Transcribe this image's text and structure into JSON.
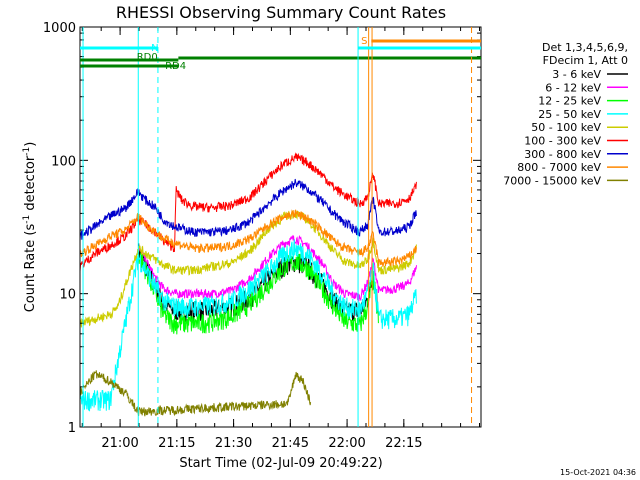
{
  "chart_data": {
    "type": "line",
    "title": "RHESSI Observing Summary Count Rates",
    "xlabel": "Start Time (02-Jul-09 20:49:22)",
    "ylabel_main": "Count Rate (s",
    "ylabel_sup1": "-1",
    "ylabel_mid": " detector",
    "ylabel_sup2": "-1",
    "ylabel_end": ")",
    "y_scale": "log",
    "ylim": [
      1,
      1000
    ],
    "xlim_minutes": [
      0,
      106
    ],
    "x_ticks": [
      {
        "m": 10.6,
        "label": "21:00"
      },
      {
        "m": 25.6,
        "label": "21:15"
      },
      {
        "m": 40.6,
        "label": "21:30"
      },
      {
        "m": 55.6,
        "label": "21:45"
      },
      {
        "m": 70.6,
        "label": "22:00"
      },
      {
        "m": 85.6,
        "label": "22:15"
      }
    ],
    "y_ticks": [
      {
        "v": 1,
        "label": "1"
      },
      {
        "v": 10,
        "label": "10"
      },
      {
        "v": 100,
        "label": "100"
      },
      {
        "v": 1000,
        "label": "1000"
      }
    ],
    "legend_header": [
      "Det 1,3,4,5,6,9,",
      "FDecim 1, Att 0"
    ],
    "legend_position": "right",
    "series": [
      {
        "name": "3 - 6 keV",
        "color": "#000000",
        "points": [
          [
            15.4,
            21
          ],
          [
            17.5,
            16
          ],
          [
            20,
            11.5
          ],
          [
            22,
            8.5
          ],
          [
            25,
            7.5
          ],
          [
            30,
            7.5
          ],
          [
            35,
            7.6
          ],
          [
            40,
            8
          ],
          [
            45,
            9.5
          ],
          [
            50,
            13
          ],
          [
            54,
            16.5
          ],
          [
            57,
            17.5
          ],
          [
            60,
            16
          ],
          [
            64,
            12
          ],
          [
            67,
            9
          ],
          [
            70,
            7.5
          ],
          [
            74,
            7.5
          ],
          [
            76,
            9
          ],
          [
            77.5,
            14
          ],
          [
            79,
            7.5
          ]
        ]
      },
      {
        "name": "6 - 12 keV",
        "color": "#ff00ff",
        "points": [
          [
            15.4,
            22
          ],
          [
            17.5,
            17.5
          ],
          [
            20,
            13
          ],
          [
            22,
            11
          ],
          [
            25,
            10
          ],
          [
            30,
            10
          ],
          [
            35,
            10
          ],
          [
            40,
            10.5
          ],
          [
            45,
            13
          ],
          [
            50,
            19
          ],
          [
            54,
            24
          ],
          [
            57,
            26
          ],
          [
            60,
            23
          ],
          [
            64,
            17
          ],
          [
            67,
            12
          ],
          [
            70,
            10
          ],
          [
            74,
            9.5
          ],
          [
            76,
            12
          ],
          [
            77.5,
            18
          ],
          [
            79,
            10.5
          ],
          [
            84,
            11
          ],
          [
            87,
            12
          ],
          [
            89,
            16
          ]
        ]
      },
      {
        "name": "12 - 25 keV",
        "color": "#00ff00",
        "points": [
          [
            15.4,
            20
          ],
          [
            17.5,
            15
          ],
          [
            20,
            10
          ],
          [
            22,
            7
          ],
          [
            25,
            6
          ],
          [
            30,
            6
          ],
          [
            35,
            6.2
          ],
          [
            40,
            6.8
          ],
          [
            45,
            8.5
          ],
          [
            50,
            12
          ],
          [
            54,
            16
          ],
          [
            57,
            17.5
          ],
          [
            60,
            16
          ],
          [
            64,
            11
          ],
          [
            67,
            8
          ],
          [
            70,
            6.2
          ],
          [
            74,
            5.8
          ],
          [
            76,
            8
          ],
          [
            77.5,
            13
          ],
          [
            79,
            6
          ]
        ]
      },
      {
        "name": "25 - 50 keV",
        "color": "#00ffff",
        "points": [
          [
            0,
            1.6
          ],
          [
            8,
            1.6
          ],
          [
            15.4,
            19
          ],
          [
            17.5,
            15
          ],
          [
            20,
            11
          ],
          [
            22,
            9
          ],
          [
            25,
            8
          ],
          [
            30,
            8
          ],
          [
            35,
            8.2
          ],
          [
            40,
            8.8
          ],
          [
            45,
            11
          ],
          [
            50,
            15
          ],
          [
            54,
            20
          ],
          [
            57,
            22
          ],
          [
            60,
            20
          ],
          [
            64,
            14
          ],
          [
            67,
            10
          ],
          [
            70,
            8
          ],
          [
            74,
            7.5
          ],
          [
            76,
            10
          ],
          [
            77.5,
            15
          ],
          [
            79,
            6.5
          ],
          [
            84,
            6.5
          ],
          [
            87,
            7
          ],
          [
            89,
            10
          ]
        ]
      },
      {
        "name": "50 - 100 keV",
        "color": "#cccc00",
        "points": [
          [
            0,
            6
          ],
          [
            8,
            7
          ],
          [
            10,
            8
          ],
          [
            15.4,
            22
          ],
          [
            17.5,
            20
          ],
          [
            20,
            18
          ],
          [
            22,
            16.5
          ],
          [
            25,
            15
          ],
          [
            30,
            15
          ],
          [
            35,
            16
          ],
          [
            40,
            17
          ],
          [
            45,
            21
          ],
          [
            50,
            31
          ],
          [
            54,
            38
          ],
          [
            57,
            40
          ],
          [
            60,
            36
          ],
          [
            64,
            27
          ],
          [
            67,
            21
          ],
          [
            70,
            17.5
          ],
          [
            74,
            16
          ],
          [
            76,
            18
          ],
          [
            77.5,
            25
          ],
          [
            79,
            15
          ],
          [
            84,
            15.5
          ],
          [
            87,
            17
          ],
          [
            89,
            22
          ]
        ]
      },
      {
        "name": "100 - 300 keV",
        "color": "#ff0000",
        "points": [
          [
            0,
            16
          ],
          [
            4,
            20
          ],
          [
            8,
            23
          ],
          [
            12,
            27
          ],
          [
            15.4,
            36
          ],
          [
            17.5,
            33
          ],
          [
            20,
            29
          ],
          [
            22,
            25
          ],
          [
            25,
            22
          ],
          [
            25.4,
            60
          ],
          [
            27,
            50
          ],
          [
            30,
            45
          ],
          [
            35,
            44
          ],
          [
            40,
            46
          ],
          [
            45,
            53
          ],
          [
            50,
            75
          ],
          [
            54,
            95
          ],
          [
            57,
            105
          ],
          [
            60,
            97
          ],
          [
            64,
            78
          ],
          [
            67,
            63
          ],
          [
            70,
            55
          ],
          [
            74,
            47
          ],
          [
            76,
            53
          ],
          [
            77.5,
            80
          ],
          [
            79,
            47
          ],
          [
            84,
            48
          ],
          [
            87,
            52
          ],
          [
            89,
            65
          ]
        ]
      },
      {
        "name": "300 - 800 keV",
        "color": "#0000cc",
        "points": [
          [
            0,
            27
          ],
          [
            4,
            32
          ],
          [
            8,
            38
          ],
          [
            12,
            44
          ],
          [
            15.4,
            58
          ],
          [
            17.5,
            50
          ],
          [
            20,
            44
          ],
          [
            22,
            36
          ],
          [
            25,
            32
          ],
          [
            30,
            29
          ],
          [
            35,
            29
          ],
          [
            40,
            30
          ],
          [
            45,
            35
          ],
          [
            50,
            48
          ],
          [
            54,
            60
          ],
          [
            57,
            68
          ],
          [
            60,
            62
          ],
          [
            64,
            49
          ],
          [
            67,
            40
          ],
          [
            70,
            34
          ],
          [
            74,
            29
          ],
          [
            76,
            33
          ],
          [
            77.5,
            52
          ],
          [
            79,
            29
          ],
          [
            84,
            29.5
          ],
          [
            87,
            32
          ],
          [
            89,
            42
          ]
        ]
      },
      {
        "name": "800 - 7000 keV",
        "color": "#ff8800",
        "points": [
          [
            0,
            20
          ],
          [
            4,
            23
          ],
          [
            8,
            27
          ],
          [
            12,
            30
          ],
          [
            15.4,
            38
          ],
          [
            17.5,
            33
          ],
          [
            20,
            29
          ],
          [
            22,
            26
          ],
          [
            25,
            24
          ],
          [
            30,
            22
          ],
          [
            35,
            22
          ],
          [
            40,
            23
          ],
          [
            45,
            26
          ],
          [
            50,
            33
          ],
          [
            54,
            38
          ],
          [
            57,
            40
          ],
          [
            60,
            37
          ],
          [
            64,
            30
          ],
          [
            67,
            25
          ],
          [
            70,
            22
          ],
          [
            74,
            20
          ],
          [
            76,
            22
          ],
          [
            77.5,
            28
          ],
          [
            79,
            17
          ],
          [
            84,
            17.5
          ],
          [
            87,
            19
          ],
          [
            89,
            22
          ]
        ]
      },
      {
        "name": "7000 - 15000 keV",
        "color": "#808000",
        "points": [
          [
            0,
            1.8
          ],
          [
            4,
            2.5
          ],
          [
            8,
            2.2
          ],
          [
            12,
            1.8
          ],
          [
            15.4,
            1.3
          ],
          [
            55,
            1.5
          ],
          [
            57,
            2.5
          ],
          [
            59,
            2.2
          ],
          [
            61,
            1.5
          ]
        ]
      }
    ],
    "annotations": [
      {
        "text": "N",
        "color": "#00ffff"
      },
      {
        "text": "RD0",
        "color": "#008000"
      },
      {
        "text": "RD4",
        "color": "#008000"
      },
      {
        "text": "S",
        "color": "#ff8800"
      }
    ],
    "timestamp": "15-Oct-2021 04:36"
  }
}
